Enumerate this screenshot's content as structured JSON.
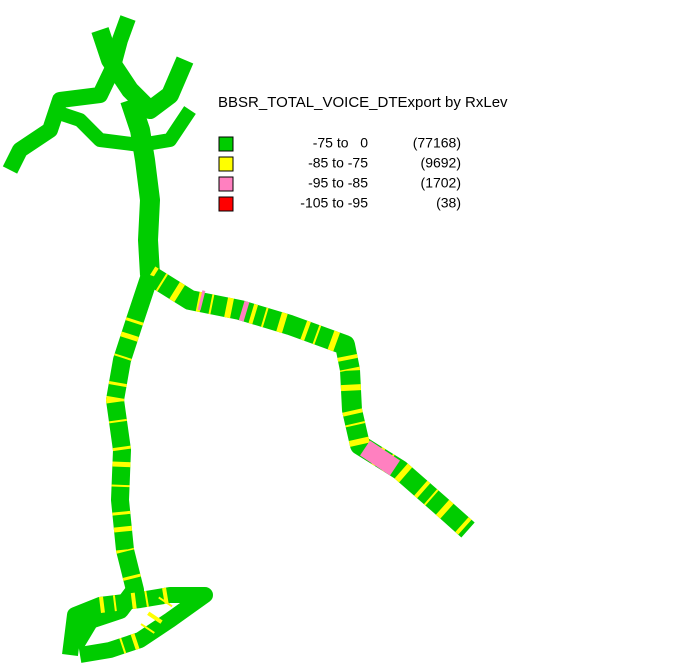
{
  "legend": {
    "title": "BBSR_TOTAL_VOICE_DTExport by RxLev",
    "items": [
      {
        "range": "-75 to   0",
        "count": "(77168)",
        "color": "#00cc00"
      },
      {
        "range": "-85 to -75",
        "count": "(9692)",
        "color": "#ffff00"
      },
      {
        "range": "-95 to -85",
        "count": "(1702)",
        "color": "#ff80c0"
      },
      {
        "range": "-105 to -95",
        "count": "(38)",
        "color": "#ff0000"
      }
    ]
  }
}
